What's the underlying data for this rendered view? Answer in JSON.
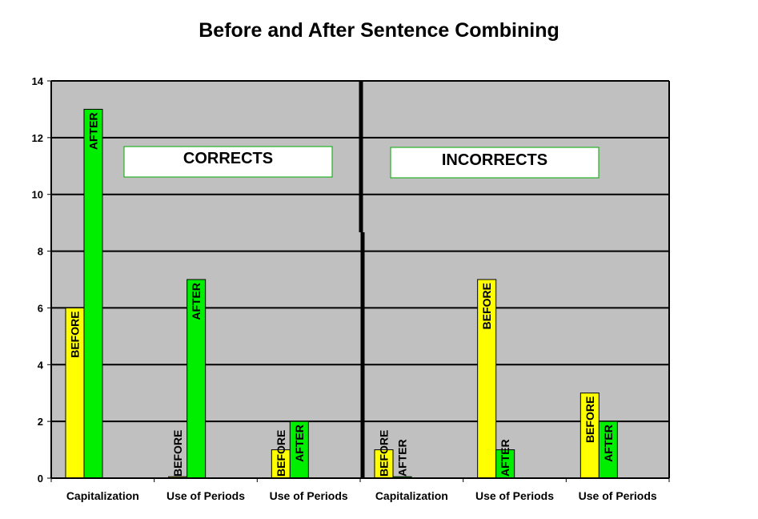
{
  "chart_data": {
    "type": "bar",
    "title": "Before and After Sentence Combining",
    "xlabel": "",
    "ylabel": "",
    "ylim": [
      0,
      14
    ],
    "yticks": [
      0,
      2,
      4,
      6,
      8,
      10,
      12,
      14
    ],
    "grid": true,
    "legend": "none",
    "categories": [
      "Capitalization",
      "Use of Periods",
      "Use of Periods",
      "Capitalization",
      "Use of Periods",
      "Use of Periods"
    ],
    "series": [
      {
        "name": "BEFORE",
        "color": "#ffff00",
        "values": [
          6,
          0.05,
          1,
          1,
          7,
          3
        ]
      },
      {
        "name": "AFTER",
        "color": "#00ee00",
        "values": [
          13,
          7,
          2,
          0.05,
          1,
          2
        ]
      }
    ],
    "annotations": [
      "CORRECTS",
      "INCORRECTS"
    ],
    "plot_background": "#c0c0c0"
  }
}
